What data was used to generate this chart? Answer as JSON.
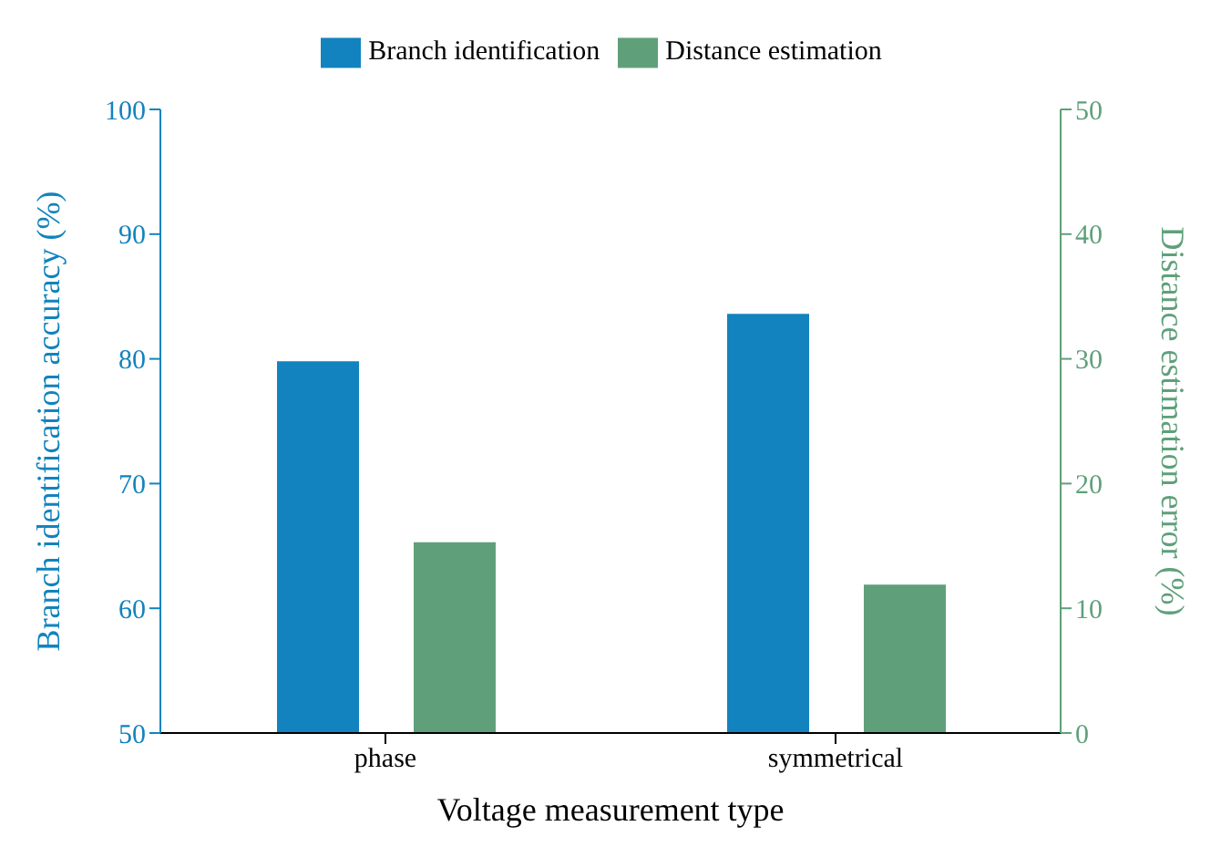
{
  "chart_data": {
    "type": "bar",
    "xlabel": "Voltage measurement type",
    "ylabel": "Branch identification accuracy (%)",
    "y2label": "Distance estimation error (%)",
    "categories": [
      "phase",
      "symmetrical"
    ],
    "series": [
      {
        "name": "Branch identification",
        "color": "#1283be",
        "values": [
          79.8,
          83.6
        ]
      },
      {
        "name": "Distance estimation",
        "color": "#5fa07a",
        "values": [
          15.3,
          11.9
        ],
        "axis": "y2"
      }
    ],
    "ylim": [
      50,
      100
    ],
    "yticks": [
      50,
      60,
      70,
      80,
      90,
      100
    ],
    "y2lim": [
      0,
      50
    ],
    "y2ticks": [
      0,
      10,
      20,
      30,
      40,
      50
    ],
    "legend": "top",
    "grid": false
  }
}
